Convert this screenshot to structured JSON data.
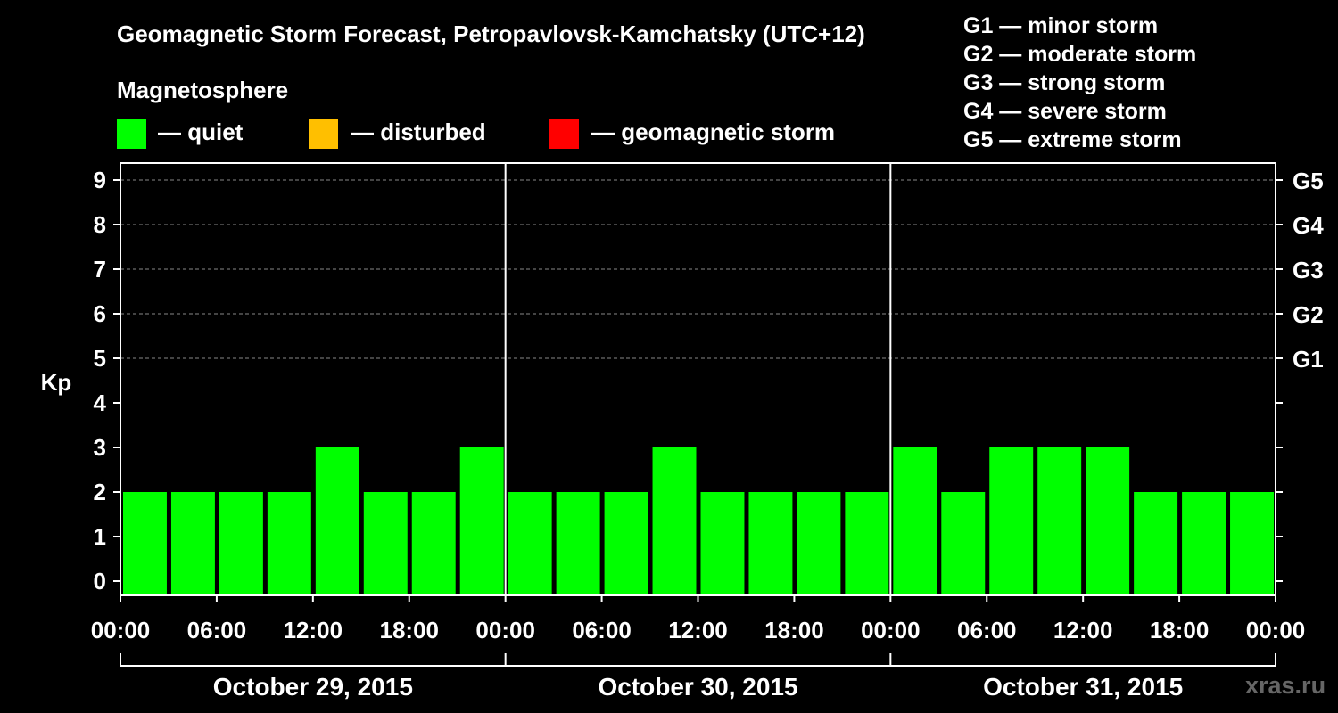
{
  "colors": {
    "quiet": "#00ff00",
    "disturbed": "#ffbf00",
    "storm": "#ff0000",
    "background": "#000000",
    "foreground": "#ffffff",
    "watermark": "#666666"
  },
  "legend": {
    "heading": "Magnetosphere",
    "quiet": "— quiet",
    "disturbed": "— disturbed",
    "storm": "— geomagnetic storm"
  },
  "storm_scale": [
    "G1 — minor storm",
    "G2 — moderate storm",
    "G3 — strong storm",
    "G4 — severe storm",
    "G5 — extreme storm"
  ],
  "watermark": "xras.ru",
  "chart_data": {
    "type": "bar",
    "title": "Geomagnetic Storm Forecast, Petropavlovsk-Kamchatsky (UTC+12)",
    "ylabel": "Kp",
    "ylim": [
      0,
      9
    ],
    "y_ticks": [
      "0",
      "1",
      "2",
      "3",
      "4",
      "5",
      "6",
      "7",
      "8",
      "9"
    ],
    "right_axis": [
      {
        "kp": 5,
        "label": "G1"
      },
      {
        "kp": 6,
        "label": "G2"
      },
      {
        "kp": 7,
        "label": "G3"
      },
      {
        "kp": 8,
        "label": "G4"
      },
      {
        "kp": 9,
        "label": "G5"
      }
    ],
    "x_tick_labels": [
      "00:00",
      "06:00",
      "12:00",
      "18:00",
      "00:00",
      "06:00",
      "12:00",
      "18:00",
      "00:00",
      "06:00",
      "12:00",
      "18:00",
      "00:00"
    ],
    "days": [
      "October 29, 2015",
      "October 30, 2015",
      "October 31, 2015"
    ],
    "interval_hours": 3,
    "values": [
      2,
      2,
      2,
      2,
      3,
      2,
      2,
      3,
      2,
      2,
      2,
      3,
      2,
      2,
      2,
      2,
      3,
      2,
      3,
      3,
      3,
      2,
      2,
      2
    ],
    "grid": "dashed at Kp 5-9"
  }
}
